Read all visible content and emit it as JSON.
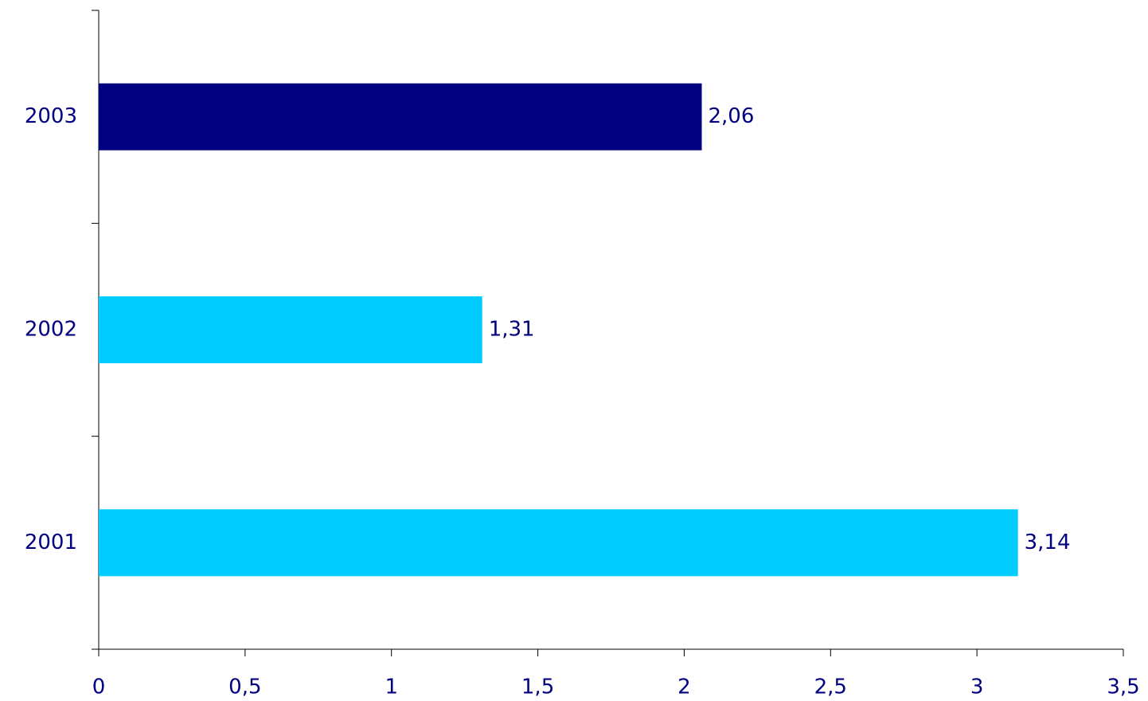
{
  "chart_data": {
    "type": "barh",
    "categories": [
      "2001",
      "2002",
      "2003"
    ],
    "values": [
      3.14,
      1.31,
      2.06
    ],
    "value_labels": [
      "3,14",
      "1,31",
      "2,06"
    ],
    "colors": [
      "#00ccff",
      "#00ccff",
      "#000080"
    ],
    "xlim": [
      0,
      3.5
    ],
    "xticks": [
      0,
      {
        "value": 0.5,
        "label": "0,5"
      },
      1,
      {
        "value": 1.5,
        "label": "1,5"
      },
      2,
      {
        "value": 2.5,
        "label": "2,5"
      },
      3,
      {
        "value": 3.5,
        "label": "3,5"
      }
    ]
  }
}
